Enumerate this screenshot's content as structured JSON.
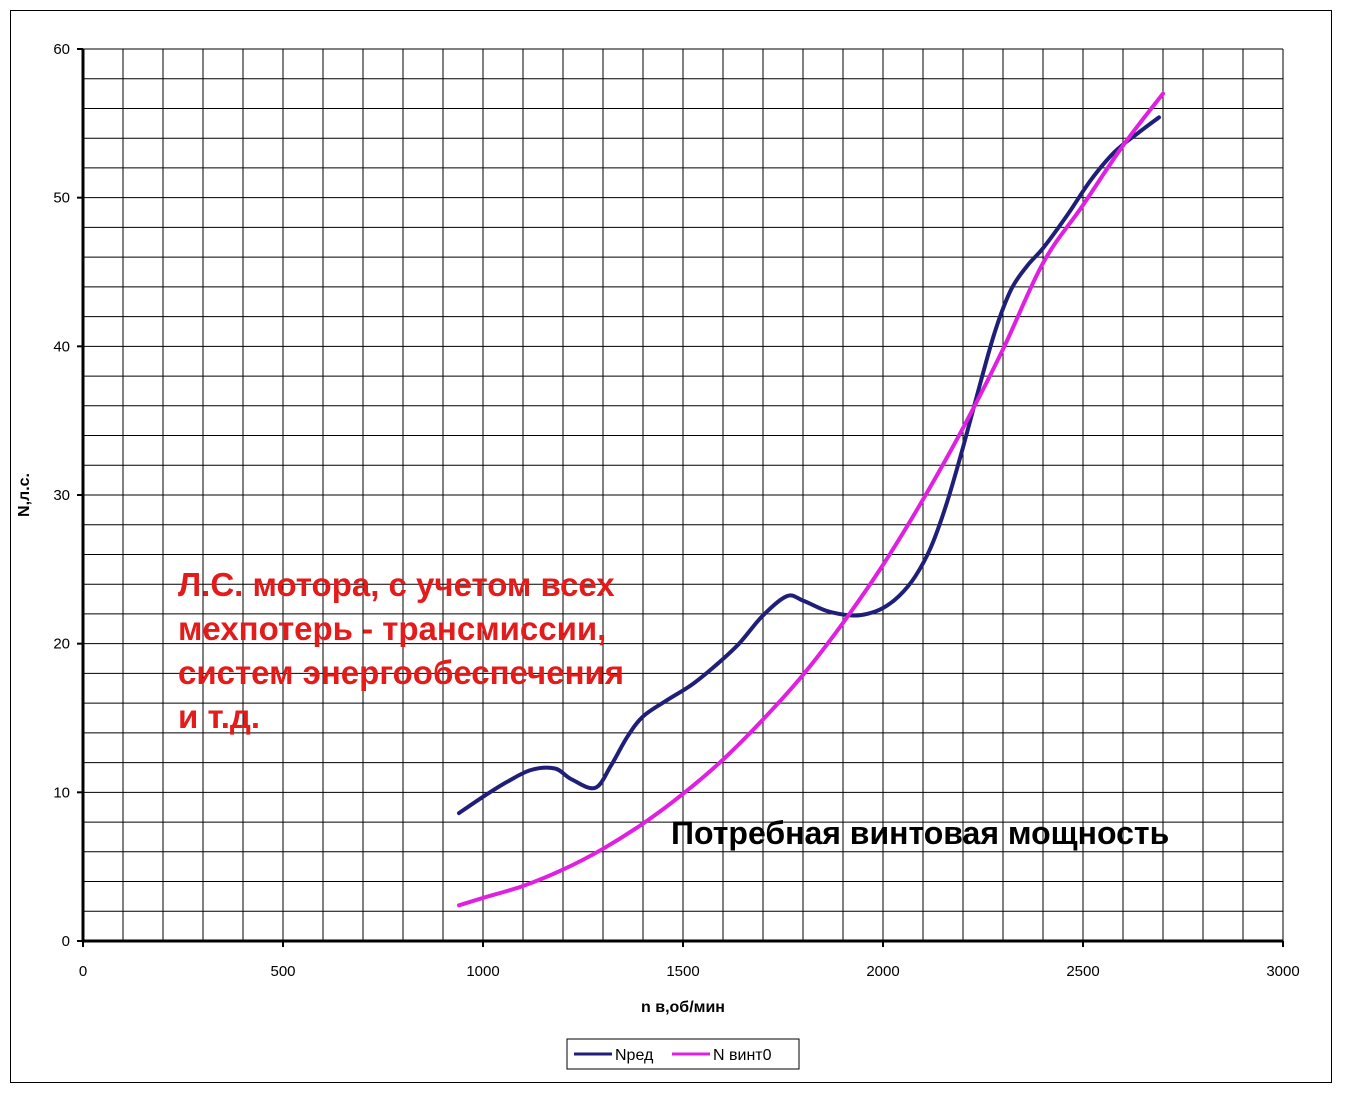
{
  "chart_data": {
    "type": "line",
    "xlabel": "n в,об/мин",
    "ylabel": "N,л.с.",
    "xlim": [
      0,
      3000
    ],
    "ylim": [
      0,
      60
    ],
    "x_ticks": [
      0,
      500,
      1000,
      1500,
      2000,
      2500,
      3000
    ],
    "y_ticks": [
      0,
      10,
      20,
      30,
      40,
      50,
      60
    ],
    "x_minor_step": 100,
    "y_minor_step": 2,
    "grid": true,
    "legend_position": "bottom-center",
    "series": [
      {
        "name": "Nред",
        "color": "#1f1f7a",
        "x": [
          940,
          1000,
          1060,
          1120,
          1180,
          1220,
          1280,
          1320,
          1360,
          1400,
          1460,
          1520,
          1580,
          1640,
          1700,
          1760,
          1800,
          1860,
          1920,
          1960,
          2000,
          2040,
          2080,
          2120,
          2160,
          2200,
          2240,
          2280,
          2320,
          2360,
          2400,
          2460,
          2520,
          2580,
          2640,
          2690
        ],
        "y": [
          8.6,
          9.7,
          10.7,
          11.5,
          11.6,
          10.9,
          10.3,
          11.8,
          13.7,
          15.1,
          16.2,
          17.2,
          18.5,
          20.0,
          21.9,
          23.2,
          22.9,
          22.2,
          21.9,
          22.0,
          22.4,
          23.2,
          24.5,
          26.5,
          29.5,
          33.2,
          37.2,
          41.0,
          43.8,
          45.4,
          46.6,
          48.8,
          51.2,
          53.1,
          54.4,
          55.4
        ]
      },
      {
        "name": "N винт0",
        "color": "#e020e0",
        "x": [
          940,
          1000,
          1100,
          1200,
          1300,
          1400,
          1500,
          1600,
          1700,
          1800,
          1900,
          2000,
          2100,
          2200,
          2300,
          2400,
          2500,
          2600,
          2700
        ],
        "y": [
          2.4,
          2.9,
          3.7,
          4.8,
          6.2,
          7.9,
          9.9,
          12.2,
          14.9,
          17.9,
          21.4,
          25.3,
          29.7,
          34.5,
          39.8,
          45.6,
          49.5,
          53.5,
          57.0
        ]
      }
    ],
    "annotations": [
      {
        "lines": [
          "Л.С. мотора, с учетом всех",
          "мехпотерь - трансмиссии,",
          "систем энергообеспечения",
          "и т.д."
        ],
        "color": "#e41b1b"
      },
      {
        "lines": [
          "Потребная винтовая мощность"
        ],
        "color": "#000000"
      }
    ]
  }
}
